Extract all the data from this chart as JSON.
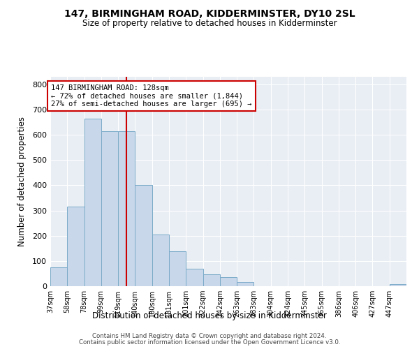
{
  "title": "147, BIRMINGHAM ROAD, KIDDERMINSTER, DY10 2SL",
  "subtitle": "Size of property relative to detached houses in Kidderminster",
  "xlabel": "Distribution of detached houses by size in Kidderminster",
  "ylabel": "Number of detached properties",
  "bin_labels": [
    "37sqm",
    "58sqm",
    "78sqm",
    "99sqm",
    "119sqm",
    "140sqm",
    "160sqm",
    "181sqm",
    "201sqm",
    "222sqm",
    "242sqm",
    "263sqm",
    "283sqm",
    "304sqm",
    "324sqm",
    "345sqm",
    "365sqm",
    "386sqm",
    "406sqm",
    "427sqm",
    "447sqm"
  ],
  "bar_heights": [
    75,
    315,
    665,
    615,
    615,
    400,
    205,
    138,
    68,
    47,
    35,
    17,
    0,
    0,
    0,
    0,
    0,
    0,
    0,
    0,
    8
  ],
  "bar_color": "#c8d8ea",
  "bar_edge_color": "#7aaac8",
  "vline_bin": 4.5,
  "vline_color": "#cc0000",
  "annotation_text": "147 BIRMINGHAM ROAD: 128sqm\n← 72% of detached houses are smaller (1,844)\n27% of semi-detached houses are larger (695) →",
  "annotation_box_color": "white",
  "annotation_box_edge": "#cc0000",
  "ylim": [
    0,
    830
  ],
  "yticks": [
    0,
    100,
    200,
    300,
    400,
    500,
    600,
    700,
    800
  ],
  "bg_color": "#e8eef4",
  "grid_color": "#ffffff",
  "footer_line1": "Contains HM Land Registry data © Crown copyright and database right 2024.",
  "footer_line2": "Contains public sector information licensed under the Open Government Licence v3.0."
}
